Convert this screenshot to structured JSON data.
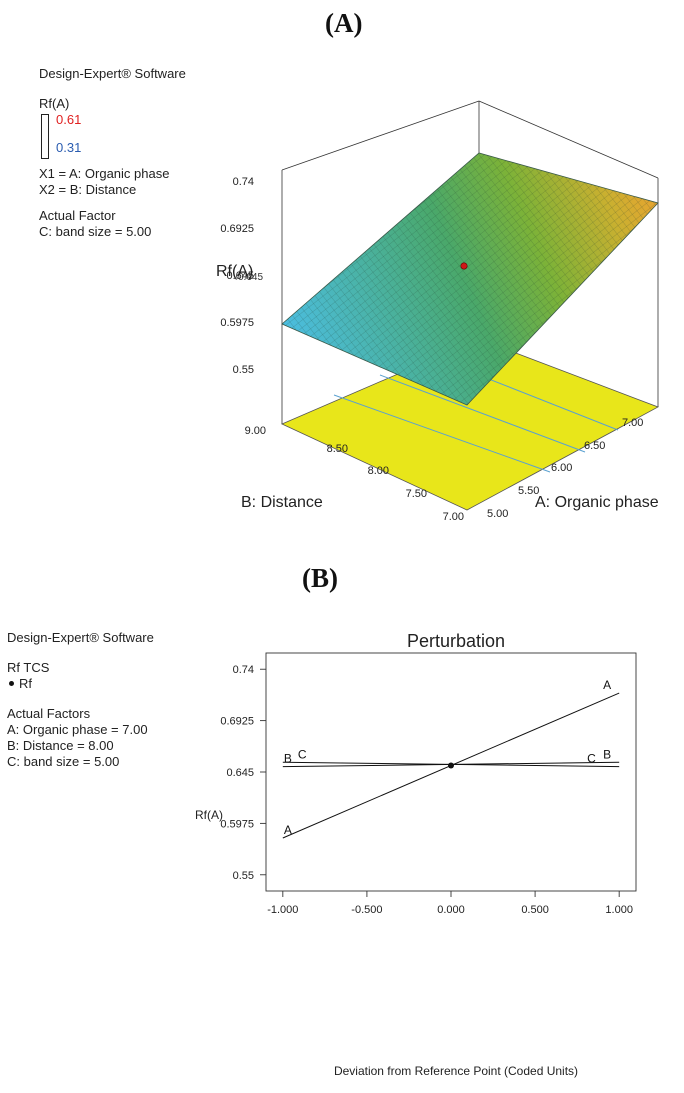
{
  "panel_a": {
    "label": "(A)",
    "software": "Design-Expert® Software",
    "response_title": "Rf(A)",
    "color_high": "0.61",
    "color_low": "0.31",
    "x1": "X1 = A: Organic phase",
    "x2": "X2 = B: Distance",
    "actual_factor_title": "Actual Factor",
    "actual_factor_c": "C: band size = 5.00"
  },
  "panel_b": {
    "label": "(B)",
    "software": "Design-Expert® Software",
    "response_title": "Rf TCS",
    "legend_point": "Rf",
    "actual_factors_title": "Actual Factors",
    "factor_a": "A: Organic phase = 7.00",
    "factor_b": "B: Distance = 8.00",
    "factor_c": "C: band size = 5.00"
  },
  "colors": {
    "high": "#e02020",
    "low": "#2a5cb0",
    "floor": "#e8e61a",
    "contour": "#5aa0d0",
    "design_point": "#d01818"
  },
  "chart_data": [
    {
      "type": "surface",
      "z_axis_label": "Rf(A)",
      "z_overlay_tick": "0.645",
      "x_axis_label": "A: Organic phase",
      "y_axis_label": "B: Distance",
      "z_ticks": [
        "0.74",
        "0.6925",
        "0.645",
        "0.5975",
        "0.55"
      ],
      "x_ticks": [
        "5.00",
        "5.50",
        "6.00",
        "6.50",
        "7.00"
      ],
      "y_ticks": [
        "7.00",
        "7.50",
        "8.00",
        "8.50",
        "9.00"
      ],
      "z_range": [
        0.55,
        0.74
      ],
      "x_range": [
        5.0,
        7.0
      ],
      "y_range": [
        7.0,
        9.0
      ],
      "surface_corners": {
        "A5_B7": 0.578,
        "A7_B7": 0.724,
        "A5_B9": 0.58,
        "A7_B9": 0.726
      },
      "design_point": {
        "A": 6.0,
        "B": 8.0,
        "z": 0.651
      }
    },
    {
      "type": "line",
      "title": "Perturbation",
      "xlabel": "Deviation from Reference Point (Coded Units)",
      "ylabel": "Rf(A)",
      "x_ticks": [
        "-1.000",
        "-0.500",
        "0.000",
        "0.500",
        "1.000"
      ],
      "y_ticks": [
        "0.74",
        "0.6925",
        "0.645",
        "0.5975",
        "0.55"
      ],
      "xlim": [
        -1.1,
        1.1
      ],
      "ylim": [
        0.535,
        0.755
      ],
      "reference_point": {
        "x": 0.0,
        "y": 0.651
      },
      "series": [
        {
          "name": "A",
          "x": [
            -1.0,
            1.0
          ],
          "y": [
            0.584,
            0.718
          ]
        },
        {
          "name": "B",
          "x": [
            -1.0,
            1.0
          ],
          "y": [
            0.65,
            0.654
          ]
        },
        {
          "name": "C",
          "x": [
            -1.0,
            1.0
          ],
          "y": [
            0.654,
            0.65
          ]
        }
      ]
    }
  ]
}
